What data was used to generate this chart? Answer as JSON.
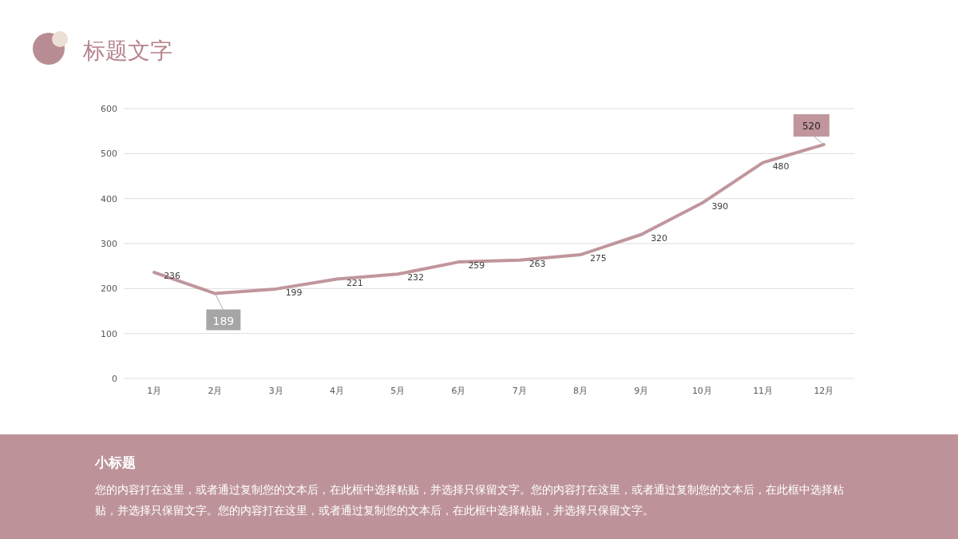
{
  "chart_data": {
    "type": "line",
    "title": "标题文字",
    "categories": [
      "1月",
      "2月",
      "3月",
      "4月",
      "5月",
      "6月",
      "7月",
      "8月",
      "9月",
      "10月",
      "11月",
      "12月"
    ],
    "series": [
      {
        "color": "#c0969c",
        "values": [
          236,
          189,
          199,
          221,
          232,
          259,
          263,
          275,
          320,
          390,
          480,
          520
        ]
      }
    ],
    "ylim": [
      0,
      600
    ],
    "yticks": [
      0,
      100,
      200,
      300,
      400,
      500,
      600
    ],
    "grid": "y",
    "data_labels": true,
    "marker": "none",
    "line_style": "solid",
    "annotations": [
      "小标题",
      "您的内容打在这里，或者通过复制您的文本后，在此框中选择粘贴，并选择只保留文字。您的内容打在这里，或者通过复制您的文本后，在此框中选择粘贴，并选择只保留文字。您的内容打在这里，或者通过复制您的文本后，在此框中选择粘贴，并选择只保留文字。"
    ]
  }
}
